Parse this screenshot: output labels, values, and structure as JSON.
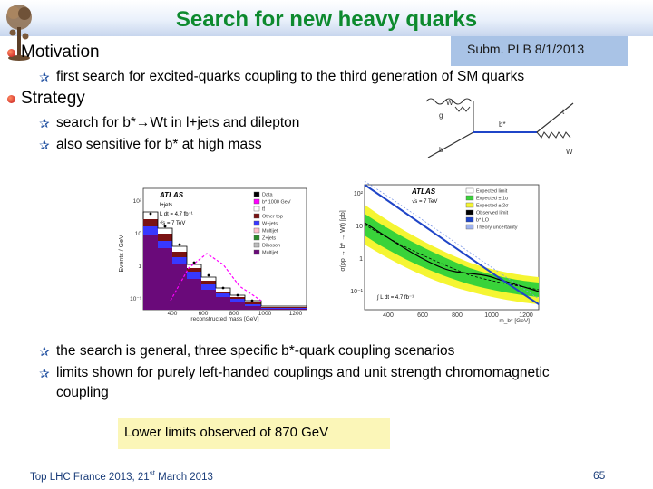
{
  "slide": {
    "title": "Search for new heavy quarks",
    "subm": "Subm. PLB 8/1/2013",
    "footer_prefix": "Top LHC France 2013, 21",
    "footer_sup": "st",
    "footer_suffix": " March 2013",
    "page": "65"
  },
  "sections": {
    "motivation": {
      "heading": "Motivation",
      "bullets": [
        "first search for excited-quarks coupling to the third generation of SM quarks"
      ]
    },
    "strategy": {
      "heading": "Strategy",
      "bullets": [
        "search for b*→Wt in l+jets and dilepton",
        "also sensitive for b* at high mass"
      ]
    },
    "results": {
      "bullets": [
        "the search is general, three specific b*-quark coupling scenarios",
        "limits shown for purely left-handed couplings and unit strength chromomagnetic",
        "coupling"
      ]
    },
    "conclusion": "Lower limits observed of 870 GeV"
  },
  "feynman": {
    "labels": [
      "g",
      "b",
      "b*",
      "t",
      "W",
      "W"
    ]
  },
  "plot_left": {
    "atlas": "ATLAS",
    "ylabel": "Events / GeV",
    "xlabel": "reconstructed mass [GeV]",
    "lumi": "L dt = 4.7 fb⁻¹",
    "energy": "√s = 7 TeV",
    "channel": "l+jets",
    "yticks": [
      "10²",
      "10",
      "1",
      "10⁻¹"
    ],
    "xticks": [
      "400",
      "600",
      "800",
      "1000",
      "1200"
    ],
    "legend": [
      "Data",
      "b* 1000 GeV",
      "tt̄",
      "Other top",
      "W+jets",
      "Multijet",
      "Z+jets",
      "Diboson",
      "Multijet"
    ],
    "legend_colors": [
      "#000000",
      "#ff00ff",
      "#ffffff",
      "#7a1212",
      "#3838ff",
      "#ffc0cb",
      "#2a8a2a",
      "#bdbdbd",
      "#6a0a7a"
    ]
  },
  "plot_right": {
    "atlas": "ATLAS",
    "ylabel": "σ(pp → b* → Wt) [pb]",
    "xlabel": "m_b* [GeV]",
    "energy": "√s = 7 TeV",
    "yticks": [
      "10²",
      "10",
      "1",
      "10⁻¹"
    ],
    "xticks": [
      "400",
      "600",
      "800",
      "1000",
      "1200"
    ],
    "legend": [
      "Expected limit",
      "Expected ± 1σ",
      "Expected ± 2σ",
      "Observed limit",
      "b* LO",
      "Theory uncertainty"
    ],
    "lumi": "∫ L dt = 4.7 fb⁻¹",
    "colors": {
      "one_sigma": "#39d33a",
      "two_sigma": "#f5f532",
      "theory": "#1f45c8",
      "observed": "#000000"
    }
  }
}
